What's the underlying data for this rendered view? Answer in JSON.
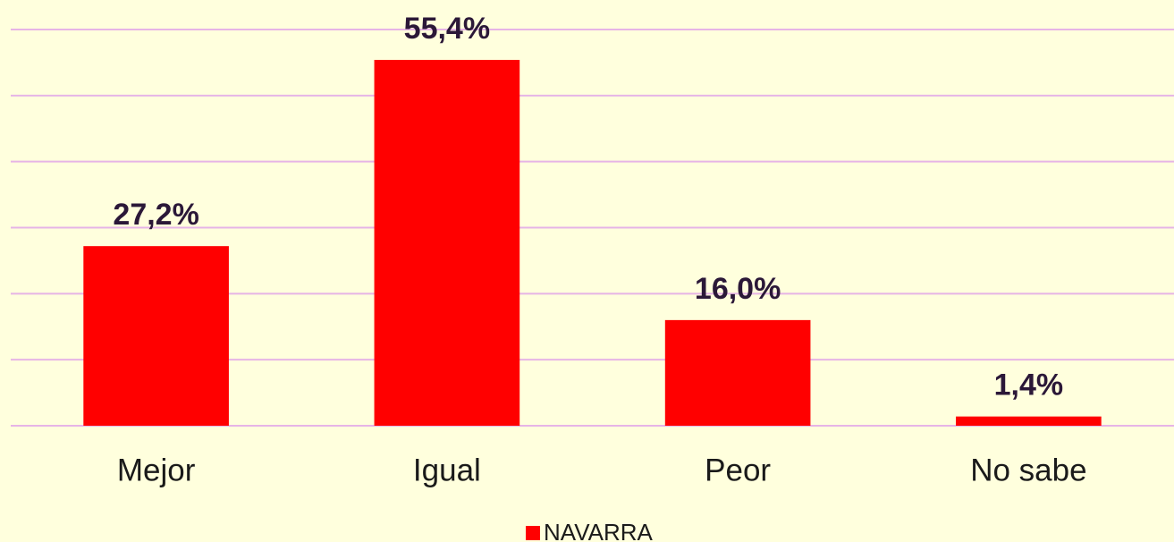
{
  "chart_data": {
    "type": "bar",
    "categories": [
      "Mejor",
      "Igual",
      "Peor",
      "No sabe"
    ],
    "series": [
      {
        "name": "NAVARRA",
        "color": "#ff0000",
        "values": [
          27.2,
          55.4,
          16.0,
          1.4
        ],
        "value_labels": [
          "27,2%",
          "55,4%",
          "16,0%",
          "1,4%"
        ]
      }
    ],
    "ylim": [
      0,
      60
    ],
    "yticks": [
      0,
      10,
      20,
      30,
      40,
      50,
      60
    ],
    "grid": true,
    "legend": "bottom"
  }
}
